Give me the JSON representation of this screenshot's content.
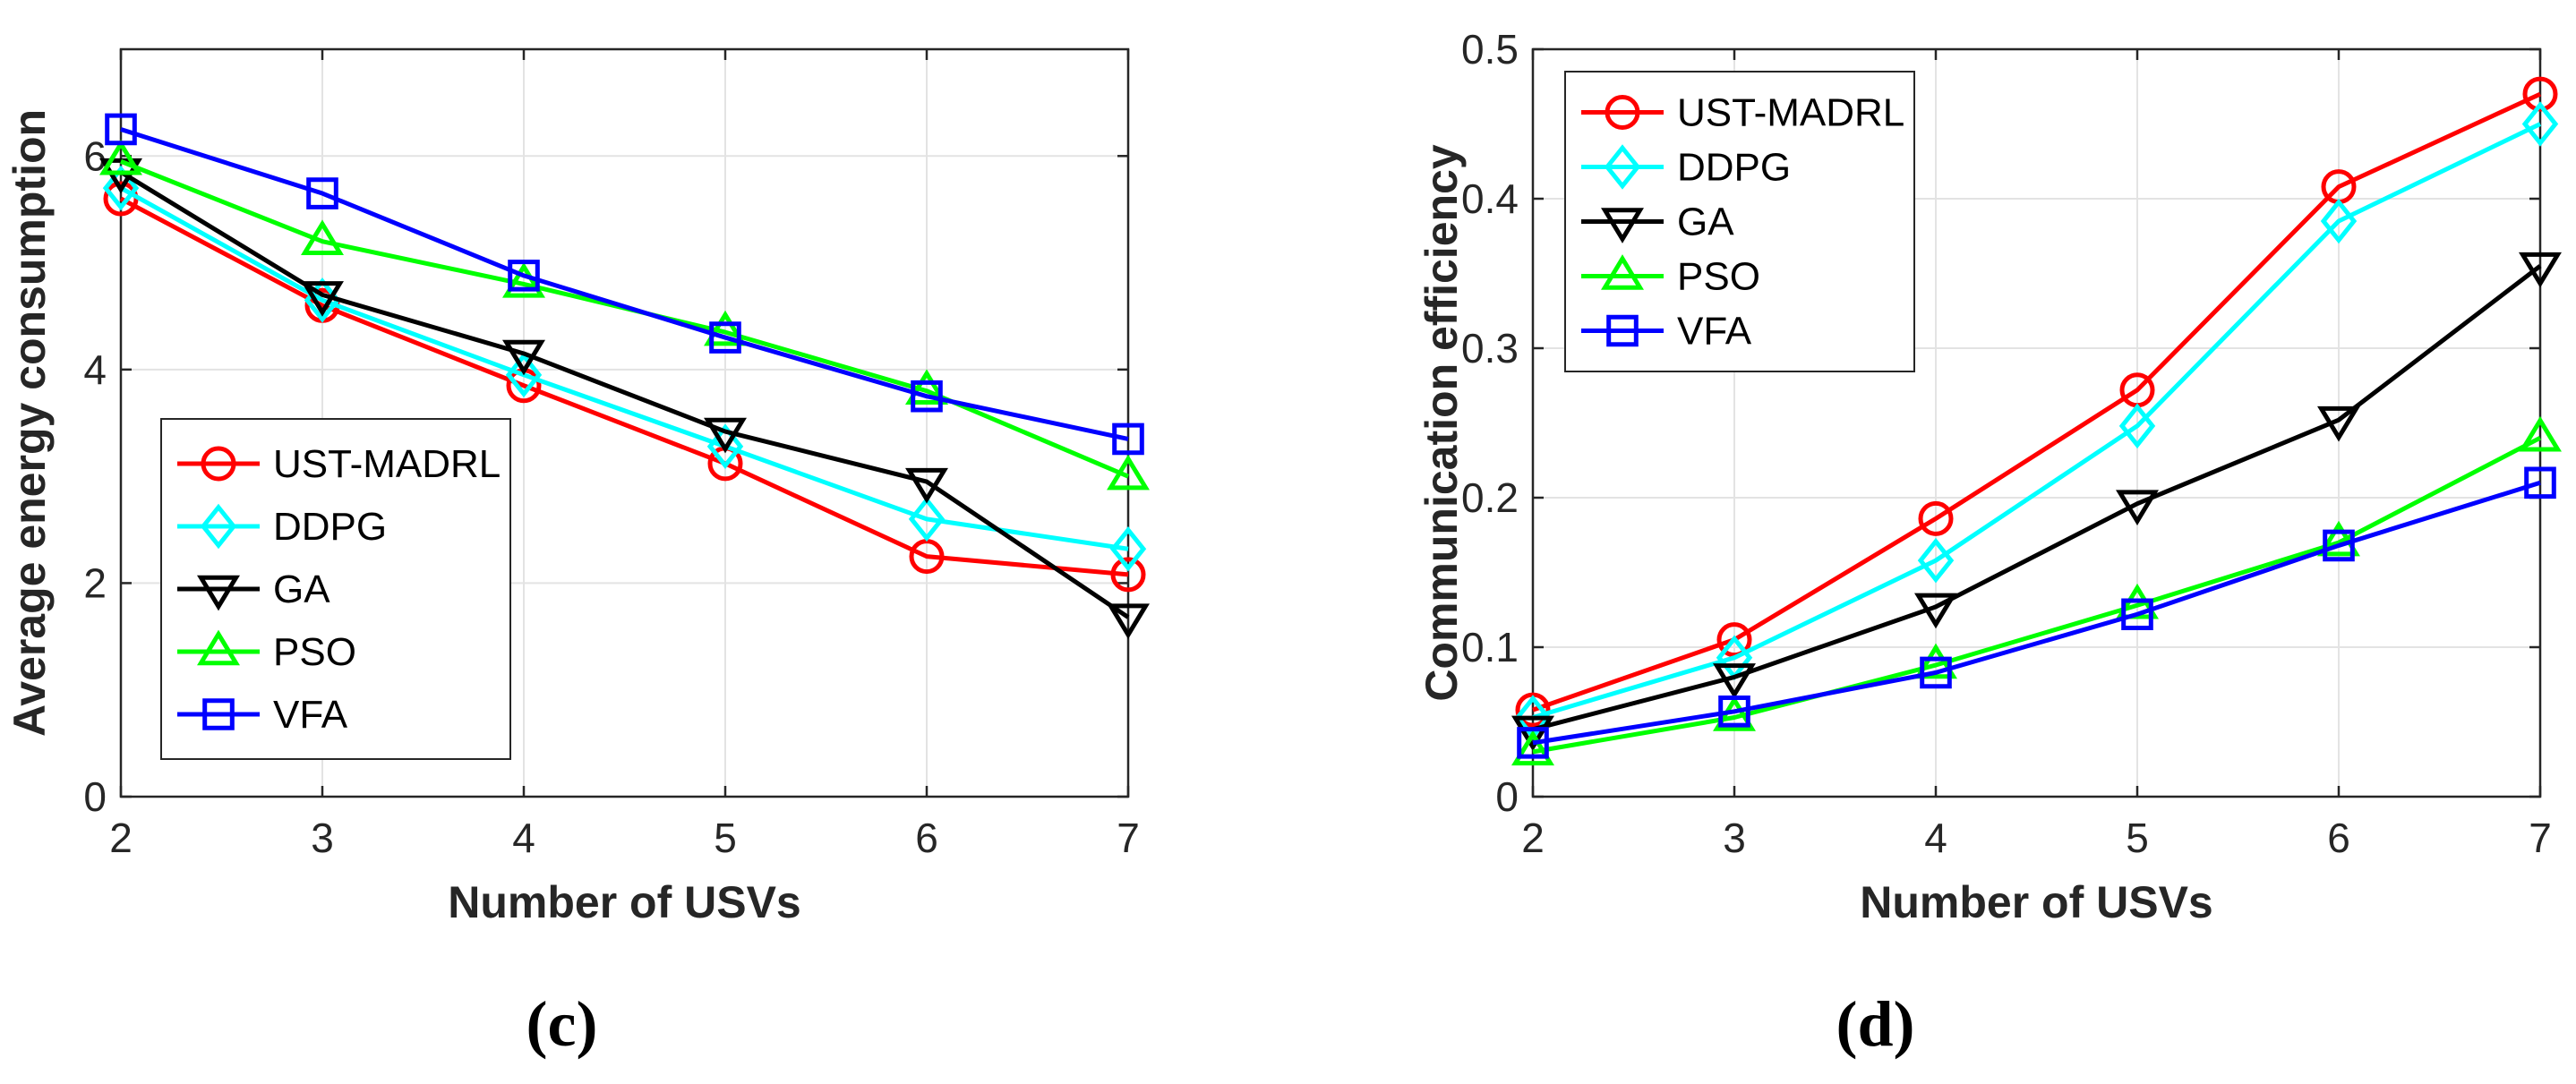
{
  "series_style": {
    "UST-MADRL": {
      "color": "#ff0000",
      "marker": "circle"
    },
    "DDPG": {
      "color": "#00ffff",
      "marker": "diamond"
    },
    "GA": {
      "color": "#000000",
      "marker": "triangle-down"
    },
    "PSO": {
      "color": "#00ff00",
      "marker": "triangle-up"
    },
    "VFA": {
      "color": "#0000ff",
      "marker": "square"
    }
  },
  "chart_data": [
    {
      "type": "line",
      "panel_label": "(c)",
      "title": "",
      "xlabel": "Number of USVs",
      "ylabel": "Average energy consumption",
      "x": [
        2,
        3,
        4,
        5,
        6,
        7
      ],
      "xlim": [
        2,
        7
      ],
      "ylim": [
        0,
        7
      ],
      "xticks": [
        "2",
        "3",
        "4",
        "5",
        "6",
        "7"
      ],
      "xtick_values": [
        2,
        3,
        4,
        5,
        6,
        7
      ],
      "yticks": [
        "0",
        "2",
        "4",
        "6"
      ],
      "ytick_values": [
        0,
        2,
        4,
        6
      ],
      "grid": true,
      "legend_position": "bottom-left",
      "series": [
        {
          "name": "UST-MADRL",
          "values": [
            5.6,
            4.6,
            3.85,
            3.12,
            2.25,
            2.08
          ]
        },
        {
          "name": "DDPG",
          "values": [
            5.7,
            4.65,
            3.95,
            3.28,
            2.6,
            2.32
          ]
        },
        {
          "name": "GA",
          "values": [
            5.85,
            4.7,
            4.15,
            3.42,
            2.95,
            1.68
          ]
        },
        {
          "name": "PSO",
          "values": [
            5.95,
            5.2,
            4.8,
            4.35,
            3.8,
            3.0
          ]
        },
        {
          "name": "VFA",
          "values": [
            6.25,
            5.65,
            4.88,
            4.3,
            3.75,
            3.35
          ]
        }
      ]
    },
    {
      "type": "line",
      "panel_label": "(d)",
      "title": "",
      "xlabel": "Number of USVs",
      "ylabel": "Communication efficiency",
      "x": [
        2,
        3,
        4,
        5,
        6,
        7
      ],
      "xlim": [
        2,
        7
      ],
      "ylim": [
        0,
        0.5
      ],
      "xticks": [
        "2",
        "3",
        "4",
        "5",
        "6",
        "7"
      ],
      "xtick_values": [
        2,
        3,
        4,
        5,
        6,
        7
      ],
      "yticks": [
        "0",
        "0.1",
        "0.2",
        "0.3",
        "0.4",
        "0.5"
      ],
      "ytick_values": [
        0,
        0.1,
        0.2,
        0.3,
        0.4,
        0.5
      ],
      "grid": true,
      "legend_position": "top-left",
      "series": [
        {
          "name": "UST-MADRL",
          "values": [
            0.058,
            0.105,
            0.186,
            0.272,
            0.408,
            0.47
          ]
        },
        {
          "name": "DDPG",
          "values": [
            0.053,
            0.093,
            0.158,
            0.248,
            0.385,
            0.45
          ]
        },
        {
          "name": "GA",
          "values": [
            0.045,
            0.08,
            0.127,
            0.196,
            0.252,
            0.355
          ]
        },
        {
          "name": "PSO",
          "values": [
            0.03,
            0.053,
            0.088,
            0.128,
            0.17,
            0.24
          ]
        },
        {
          "name": "VFA",
          "values": [
            0.036,
            0.057,
            0.083,
            0.122,
            0.168,
            0.21
          ]
        }
      ]
    }
  ]
}
